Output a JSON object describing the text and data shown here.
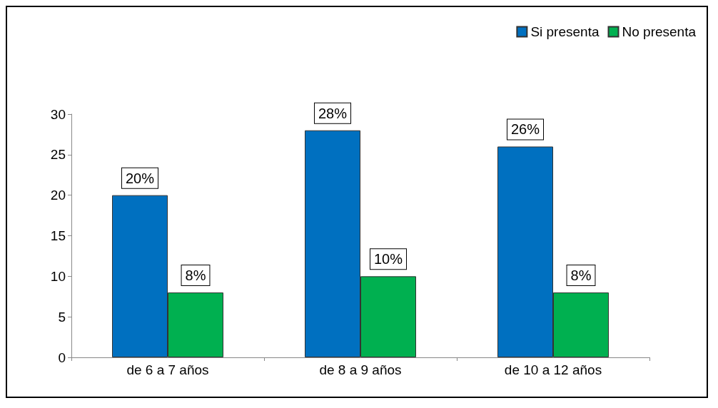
{
  "chart_data": {
    "type": "bar",
    "categories": [
      "de 6 a 7 años",
      "de 8 a 9 años",
      "de 10 a 12 años"
    ],
    "series": [
      {
        "name": "Si presenta",
        "color": "#0070c0",
        "values": [
          20,
          28,
          26
        ],
        "value_labels": [
          "20%",
          "28%",
          "26%"
        ]
      },
      {
        "name": "No presenta",
        "color": "#00b050",
        "values": [
          8,
          10,
          8
        ],
        "value_labels": [
          "8%",
          "10%",
          "8%"
        ]
      }
    ],
    "ylim": [
      0,
      30
    ],
    "yticks": [
      0,
      5,
      10,
      15,
      20,
      25,
      30
    ],
    "legend": "top right"
  }
}
